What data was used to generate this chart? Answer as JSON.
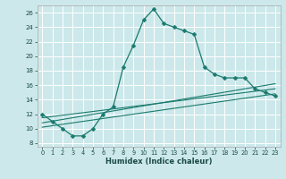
{
  "xlabel": "Humidex (Indice chaleur)",
  "background_color": "#cce8ea",
  "grid_color": "#ffffff",
  "line_color": "#1a7a6e",
  "xlim": [
    -0.5,
    23.5
  ],
  "ylim": [
    7.5,
    27.0
  ],
  "xticks": [
    0,
    1,
    2,
    3,
    4,
    5,
    6,
    7,
    8,
    9,
    10,
    11,
    12,
    13,
    14,
    15,
    16,
    17,
    18,
    19,
    20,
    21,
    22,
    23
  ],
  "yticks": [
    8,
    10,
    12,
    14,
    16,
    18,
    20,
    22,
    24,
    26
  ],
  "main_series": {
    "x": [
      0,
      1,
      2,
      3,
      4,
      5,
      6,
      7,
      8,
      9,
      10,
      11,
      12,
      13,
      14,
      15,
      16,
      17,
      18,
      19,
      20,
      21,
      22,
      23
    ],
    "y": [
      12,
      11,
      10,
      9,
      9,
      10,
      12,
      13,
      18.5,
      21.5,
      25,
      26.5,
      24.5,
      24,
      23.5,
      23,
      18.5,
      17.5,
      17,
      17,
      17,
      15.5,
      15,
      14.5
    ]
  },
  "band_series": [
    {
      "x": [
        0,
        23
      ],
      "y": [
        11.5,
        15.5
      ]
    },
    {
      "x": [
        0,
        23
      ],
      "y": [
        10.8,
        16.2
      ]
    },
    {
      "x": [
        0,
        23
      ],
      "y": [
        10.2,
        14.8
      ]
    }
  ]
}
